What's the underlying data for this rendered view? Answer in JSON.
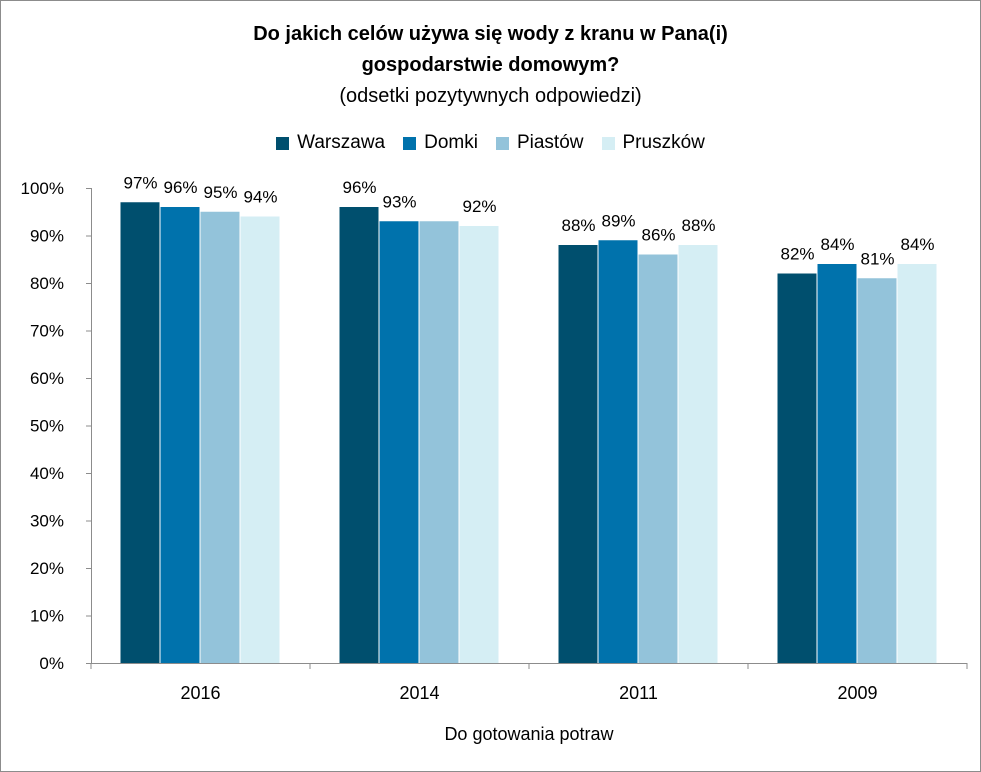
{
  "chart_data": {
    "type": "bar",
    "title_line1": "Do jakich celów używa się wody z kranu w Pana(i)",
    "title_line2": "gospodarstwie domowym?",
    "subtitle": "(odsetki pozytywnych odpowiedzi)",
    "xlabel": "Do gotowania potraw",
    "ylabel": "",
    "ylim": [
      0,
      100
    ],
    "yticks": [
      "0%",
      "10%",
      "20%",
      "30%",
      "40%",
      "50%",
      "60%",
      "70%",
      "80%",
      "90%",
      "100%"
    ],
    "grid": false,
    "legend_position": "top",
    "categories": [
      "2016",
      "2014",
      "2011",
      "2009"
    ],
    "series": [
      {
        "name": "Warszawa",
        "color": "#004f6e",
        "values": [
          97,
          96,
          88,
          82
        ],
        "labels": [
          "97%",
          "96%",
          "88%",
          "82%"
        ]
      },
      {
        "name": "Domki",
        "color": "#0072ac",
        "values": [
          96,
          93,
          89,
          84
        ],
        "labels": [
          "96%",
          "93%",
          "89%",
          "84%"
        ]
      },
      {
        "name": "Piastów",
        "color": "#93c3da",
        "values": [
          95,
          93,
          86,
          81
        ],
        "labels": [
          "95%",
          "",
          "86%",
          "81%"
        ]
      },
      {
        "name": "Pruszków",
        "color": "#d5eef4",
        "values": [
          94,
          92,
          88,
          84
        ],
        "labels": [
          "94%",
          "92%",
          "88%",
          "84%"
        ]
      }
    ]
  }
}
